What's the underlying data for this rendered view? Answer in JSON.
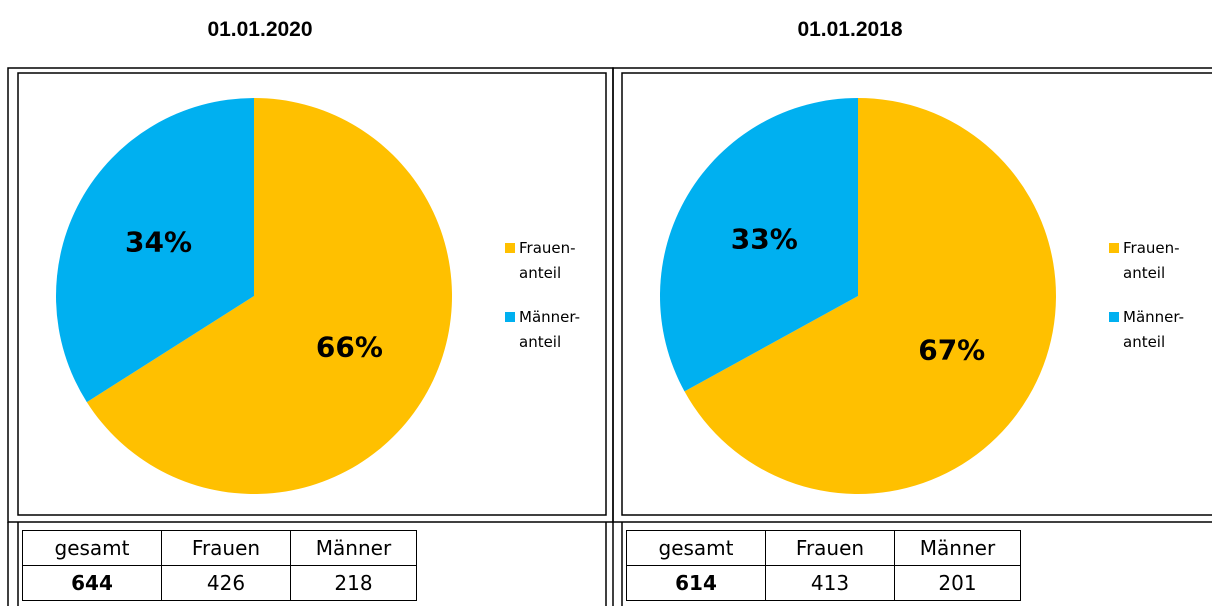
{
  "chart_data": [
    {
      "type": "pie",
      "title": "01.01.2020",
      "categories": [
        "Frauen-\nanteil",
        "Männer-\nanteil"
      ],
      "values": [
        66,
        34
      ],
      "value_labels": [
        "66%",
        "34%"
      ],
      "colors": [
        "#ffc000",
        "#00b0f0"
      ],
      "legend": "right"
    },
    {
      "type": "pie",
      "title": "01.01.2018",
      "categories": [
        "Frauen-\nanteil",
        "Männer-\nanteil"
      ],
      "values": [
        67,
        33
      ],
      "value_labels": [
        "67%",
        "33%"
      ],
      "colors": [
        "#ffc000",
        "#00b0f0"
      ],
      "legend": "right"
    }
  ],
  "tables": [
    {
      "header": [
        "gesamt",
        "Frauen",
        "Männer"
      ],
      "row": [
        644,
        426,
        218
      ]
    },
    {
      "header": [
        "gesamt",
        "Frauen",
        "Männer"
      ],
      "row": [
        614,
        413,
        201
      ]
    }
  ]
}
